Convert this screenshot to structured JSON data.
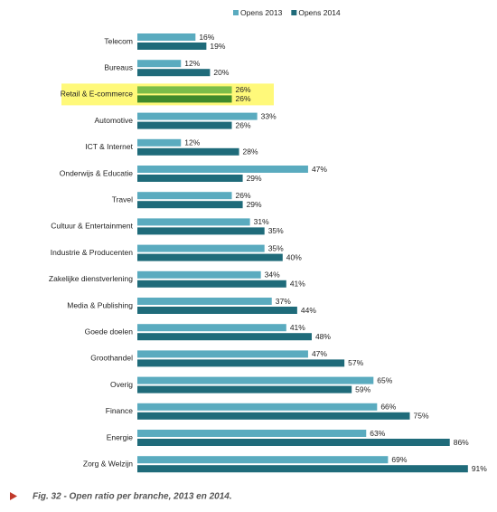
{
  "chart_data": {
    "type": "bar",
    "orientation": "horizontal",
    "caption": "Fig. 32 - Open ratio per branche, 2013 en 2014.",
    "categories": [
      "Telecom",
      "Bureaus",
      "Retail & E-commerce",
      "Automotive",
      "ICT & Internet",
      "Onderwijs & Educatie",
      "Travel",
      "Cultuur & Entertainment",
      "Industrie & Producenten",
      "Zakelijke dienstverlening",
      "Media & Publishing",
      "Goede doelen",
      "Groothandel",
      "Overig",
      "Finance",
      "Energie",
      "Zorg & Welzijn"
    ],
    "series": [
      {
        "name": "Opens 2013",
        "color": "#5aabbf",
        "values": [
          16,
          12,
          26,
          33,
          12,
          47,
          26,
          31,
          35,
          34,
          37,
          41,
          47,
          65,
          66,
          63,
          69
        ],
        "value_labels": [
          "16%",
          "12%",
          "26%",
          "33%",
          "12%",
          "47%",
          "26%",
          "31%",
          "35%",
          "34%",
          "37%",
          "41%",
          "47%",
          "65%",
          "66%",
          "63%",
          "69%"
        ]
      },
      {
        "name": "Opens 2014",
        "color": "#1f6b7a",
        "values": [
          19,
          20,
          26,
          26,
          28,
          29,
          29,
          35,
          40,
          41,
          44,
          48,
          57,
          59,
          75,
          86,
          91
        ],
        "value_labels": [
          "19%",
          "20%",
          "26%",
          "26%",
          "28%",
          "29%",
          "29%",
          "35%",
          "40%",
          "41%",
          "44%",
          "48%",
          "57%",
          "59%",
          "75%",
          "86%",
          "91%"
        ]
      }
    ],
    "highlight": 2,
    "highlight_colors": [
      "#7bbd4a",
      "#3f8a2c"
    ],
    "highlight_background": "#fff97a"
  }
}
